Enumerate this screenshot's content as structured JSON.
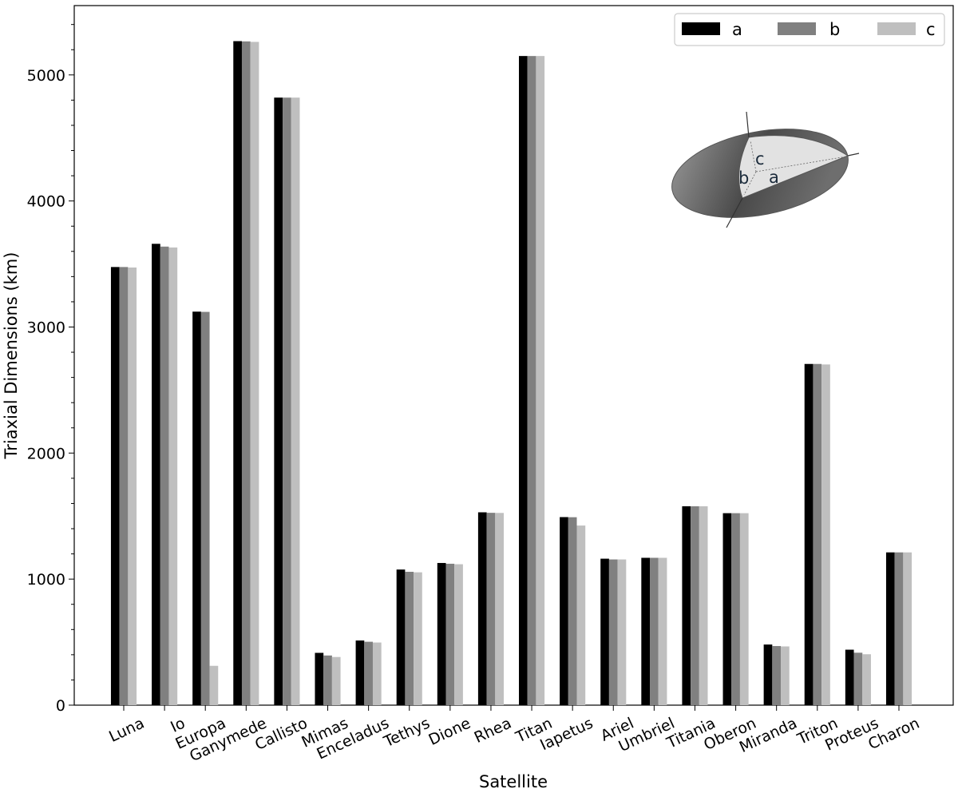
{
  "chart_data": {
    "type": "bar",
    "xlabel": "Satellite",
    "ylabel": "Triaxial Dimensions (km)",
    "ylim": [
      0,
      5550
    ],
    "yticks": [
      0,
      1000,
      2000,
      3000,
      4000,
      5000
    ],
    "grid": false,
    "legend_position": "top-right",
    "categories": [
      "Luna",
      "Io",
      "Europa",
      "Ganymede",
      "Callisto",
      "Mimas",
      "Enceladus",
      "Tethys",
      "Dione",
      "Rhea",
      "Titan",
      "Iapetus",
      "Ariel",
      "Umbriel",
      "Titania",
      "Oberon",
      "Miranda",
      "Triton",
      "Proteus",
      "Charon"
    ],
    "series": [
      {
        "name": "a",
        "color": "#000000",
        "values": [
          3476,
          3660,
          3122,
          5268,
          4820,
          415,
          513,
          1076,
          1128,
          1530,
          5150,
          1492,
          1162,
          1169,
          1578,
          1523,
          481,
          2707,
          440,
          1212
        ]
      },
      {
        "name": "b",
        "color": "#808080",
        "values": [
          3476,
          3638,
          3120,
          5266,
          4820,
          394,
          503,
          1058,
          1122,
          1526,
          5150,
          1491,
          1156,
          1169,
          1578,
          1523,
          469,
          2707,
          416,
          1212
        ]
      },
      {
        "name": "c",
        "color": "#bfbfbf",
        "values": [
          3472,
          3631,
          312,
          5262,
          4820,
          382,
          497,
          1054,
          1118,
          1525,
          5150,
          1425,
          1156,
          1169,
          1578,
          1523,
          466,
          2703,
          404,
          1212
        ]
      }
    ],
    "inset_labels": [
      "c",
      "b",
      "a"
    ]
  }
}
